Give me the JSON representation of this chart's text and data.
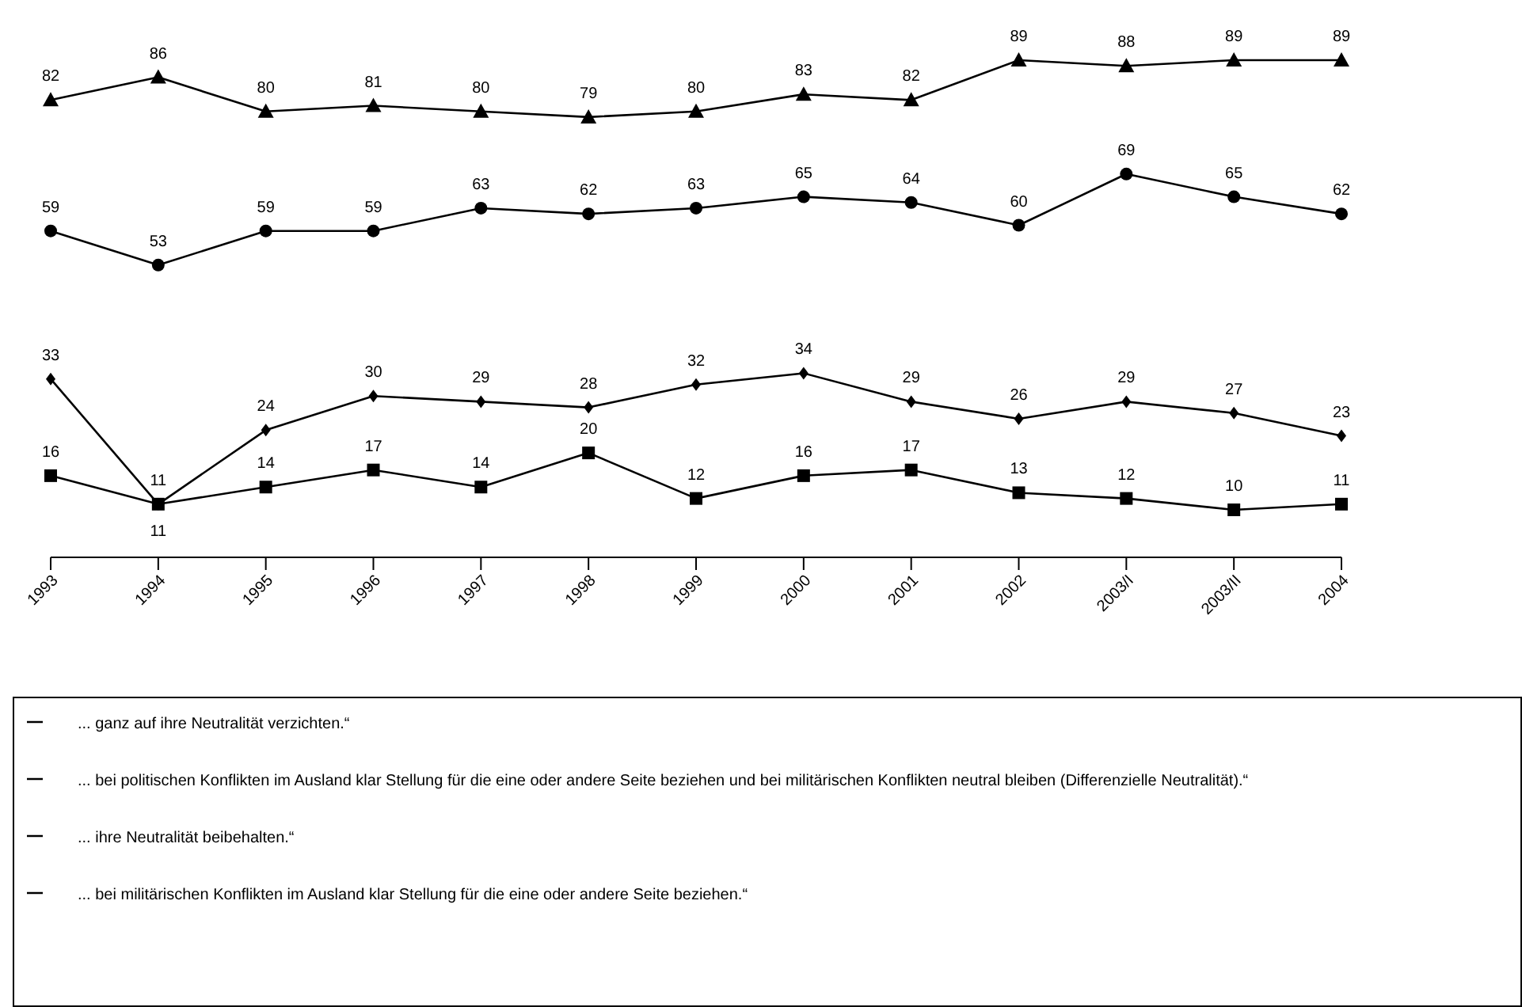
{
  "chart_data": {
    "type": "line",
    "categories": [
      "1993",
      "1994",
      "1995",
      "1996",
      "1997",
      "1998",
      "1999",
      "2000",
      "2001",
      "2002",
      "2003/I",
      "2003/II",
      "2004"
    ],
    "tick_labels": "x",
    "data_labels": true,
    "grid": false,
    "legend": "bottom",
    "line_style": "solid",
    "series": [
      {
        "name": "... ganz auf ihre Neutralität verzichten.“",
        "color": "#000000",
        "marker": "square",
        "values": [
          16,
          11,
          14,
          17,
          14,
          20,
          12,
          16,
          17,
          13,
          12,
          10,
          11
        ]
      },
      {
        "name": "... bei politischen Konflikten im Ausland klar Stellung für die eine oder andere Seite beziehen und bei militärischen Konflikten neutral bleiben (Differenzielle Neutralität).“",
        "color": "#000000",
        "marker": "circle",
        "values": [
          59,
          53,
          59,
          59,
          63,
          62,
          63,
          65,
          64,
          60,
          69,
          65,
          62
        ]
      },
      {
        "name": "... ihre Neutralität beibehalten.“",
        "color": "#000000",
        "marker": "triangle",
        "values": [
          82,
          86,
          80,
          81,
          80,
          79,
          80,
          83,
          82,
          89,
          88,
          89,
          89
        ]
      },
      {
        "name": "... bei militärischen Konflikten im Ausland klar Stellung für die eine oder andere Seite beziehen.“",
        "color": "#000000",
        "marker": "diamond",
        "values": [
          33,
          11,
          24,
          30,
          29,
          28,
          32,
          34,
          29,
          26,
          29,
          27,
          23
        ]
      }
    ]
  }
}
